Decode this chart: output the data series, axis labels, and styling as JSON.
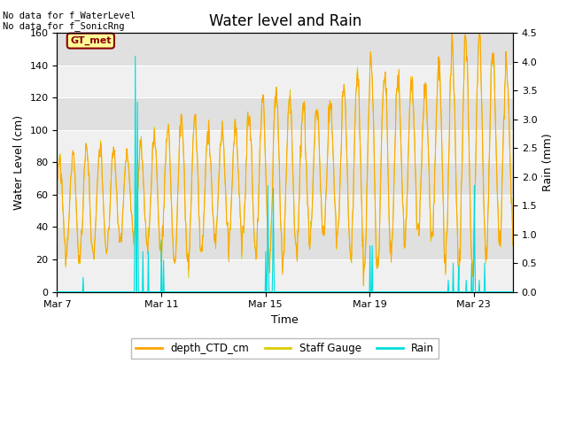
{
  "title": "Water level and Rain",
  "xlabel": "Time",
  "ylabel_left": "Water Level (cm)",
  "ylabel_right": "Rain (mm)",
  "annotation_text": "No data for f_WaterLevel\nNo data for f_SonicRng",
  "gt_met_label": "GT_met",
  "ylim_left": [
    0,
    160
  ],
  "ylim_right": [
    0,
    4.5
  ],
  "yticks_left": [
    0,
    20,
    40,
    60,
    80,
    100,
    120,
    140,
    160
  ],
  "yticks_right": [
    0.0,
    0.5,
    1.0,
    1.5,
    2.0,
    2.5,
    3.0,
    3.5,
    4.0,
    4.5
  ],
  "xtick_labels": [
    "Mar 7",
    "Mar 11",
    "Mar 15",
    "Mar 19",
    "Mar 23"
  ],
  "color_depth_CTD": "#FFA500",
  "color_staff_gauge": "#DDCC00",
  "color_rain": "#00DDDD",
  "plot_bg_color": "#E8E8E8",
  "grid_color": "#FFFFFF",
  "legend_labels": [
    "depth_CTD_cm",
    "Staff Gauge",
    "Rain"
  ],
  "legend_colors": [
    "#FFA500",
    "#DDCC00",
    "#00DDDD"
  ],
  "title_fontsize": 12,
  "axis_label_fontsize": 9,
  "tick_fontsize": 8,
  "annotation_fontsize": 7.5,
  "gt_box_facecolor": "#FFFF99",
  "gt_box_edgecolor": "#8B0000",
  "gt_text_color": "#8B0000"
}
